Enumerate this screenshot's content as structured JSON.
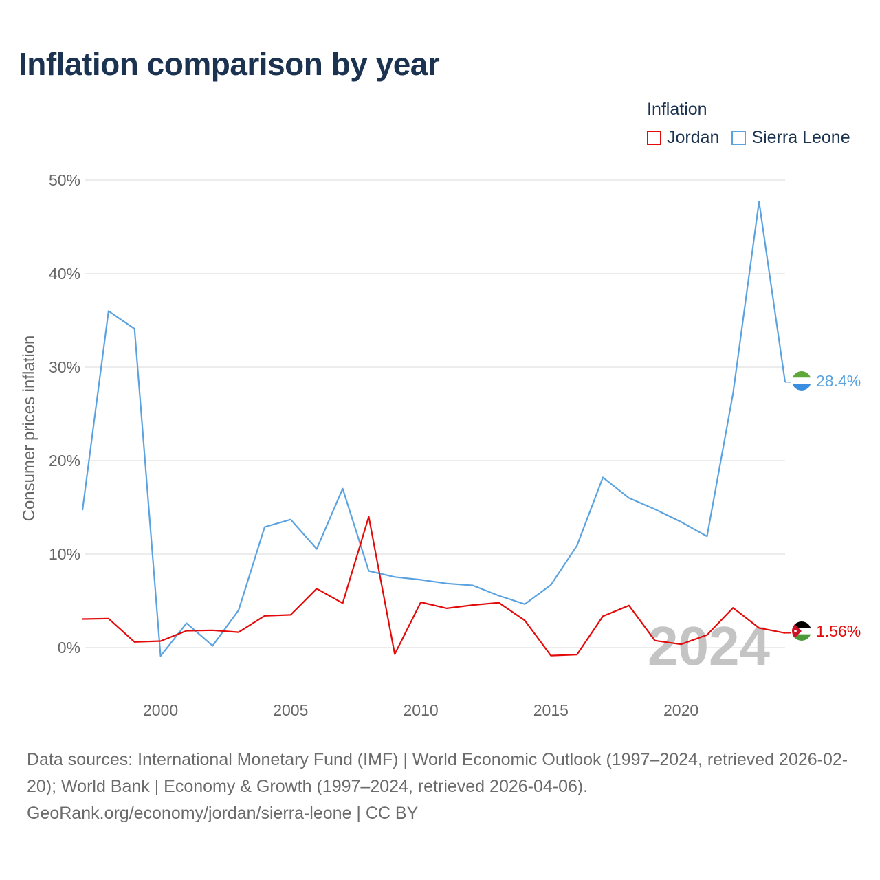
{
  "title": "Inflation comparison by year",
  "legend": {
    "title": "Inflation",
    "items": [
      {
        "label": "Jordan",
        "color": "#e30a0a"
      },
      {
        "label": "Sierra Leone",
        "color": "#5ba3e0"
      }
    ]
  },
  "watermark_year": "2024",
  "source_text": "Data sources: International Monetary Fund (IMF) | World Economic Outlook (1997–2024, retrieved 2026-02-20); World Bank | Economy & Growth (1997–2024, retrieved 2026-04-06). GeoRank.org/economy/jordan/sierra-leone | CC BY",
  "chart_data": {
    "type": "line",
    "title": "Inflation comparison by year",
    "xlabel": "",
    "ylabel": "Consumer prices inflation",
    "xlim": [
      1997,
      2024
    ],
    "ylim": [
      -5,
      50
    ],
    "x_ticks": [
      2000,
      2005,
      2010,
      2015,
      2020
    ],
    "y_ticks": [
      0,
      10,
      20,
      30,
      40,
      50
    ],
    "y_tick_labels": [
      "0%",
      "10%",
      "20%",
      "30%",
      "40%",
      "50%"
    ],
    "grid": true,
    "legend_position": "top-right",
    "x": [
      1997,
      1998,
      1999,
      2000,
      2001,
      2002,
      2003,
      2004,
      2005,
      2006,
      2007,
      2008,
      2009,
      2010,
      2011,
      2012,
      2013,
      2014,
      2015,
      2016,
      2017,
      2018,
      2019,
      2020,
      2021,
      2022,
      2023,
      2024
    ],
    "series": [
      {
        "name": "Jordan",
        "color": "#e30a0a",
        "end_label": "1.56%",
        "values": [
          3.05,
          3.1,
          0.6,
          0.7,
          1.8,
          1.85,
          1.65,
          3.4,
          3.5,
          6.3,
          4.75,
          14.0,
          -0.7,
          4.85,
          4.2,
          4.55,
          4.8,
          2.9,
          -0.85,
          -0.75,
          3.35,
          4.5,
          0.75,
          0.35,
          1.35,
          4.25,
          2.1,
          1.56
        ]
      },
      {
        "name": "Sierra Leone",
        "color": "#5ba3e0",
        "end_label": "28.4%",
        "values": [
          14.7,
          36.0,
          34.1,
          -0.9,
          2.6,
          0.2,
          4.0,
          12.9,
          13.7,
          10.55,
          17.0,
          8.2,
          7.55,
          7.25,
          6.85,
          6.65,
          5.55,
          4.65,
          6.7,
          10.9,
          18.2,
          16.0,
          14.8,
          13.45,
          11.9,
          27.2,
          47.7,
          28.4
        ]
      }
    ]
  }
}
